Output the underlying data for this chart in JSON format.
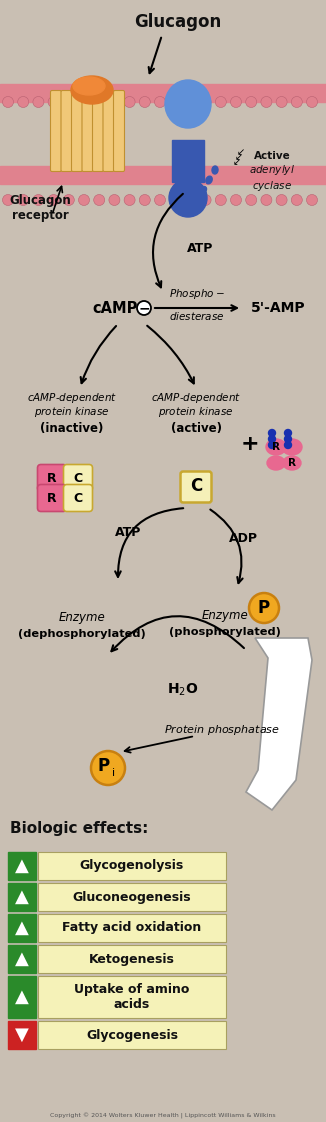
{
  "bg_color": "#c9bfb3",
  "membrane_pink": "#e0828e",
  "receptor_orange_light": "#f0c878",
  "receptor_orange_dark": "#e07828",
  "adenylyl_blue_light": "#6090d8",
  "adenylyl_blue_dark": "#3858b0",
  "kinase_pink": "#e86890",
  "kinase_pink_dark": "#c84870",
  "C_fill": "#f5f0b8",
  "C_edge": "#c8a830",
  "P_fill": "#f0a820",
  "P_edge": "#c88010",
  "up_color": "#2a8a2a",
  "down_color": "#cc2222",
  "box_yellow": "#f5f2b8",
  "box_edge": "#a8a060",
  "arrow_black": "#111111",
  "text_dark": "#111111",
  "biologic_effects": [
    {
      "label": "Glycogenolysis",
      "up": true,
      "two_line": false
    },
    {
      "label": "Gluconeogenesis",
      "up": true,
      "two_line": false
    },
    {
      "label": "Fatty acid oxidation",
      "up": true,
      "two_line": false
    },
    {
      "label": "Ketogenesis",
      "up": true,
      "two_line": false
    },
    {
      "label": "Uptake of amino\nacids",
      "up": true,
      "two_line": true
    },
    {
      "label": "Glycogenesis",
      "up": false,
      "two_line": false
    }
  ],
  "copyright": "Copyright © 2014 Wolters Kluwer Health | Lippincott Williams & Wilkins"
}
